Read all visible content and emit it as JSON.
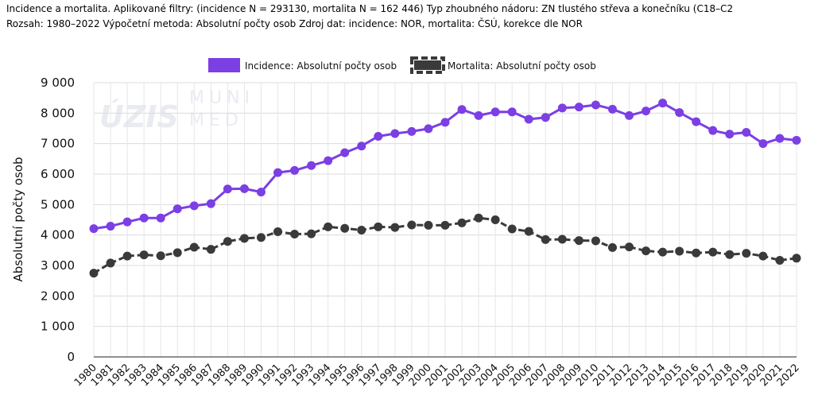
{
  "header": {
    "line1": "Incidence a mortalita. Aplikované filtry: (incidence N = 293130, mortalita N = 162 446) Typ zhoubného nádoru: ZN tlustého střeva a konečníku (C18–C2",
    "line2": "Rozsah: 1980–2022 Výpočetní metoda: Absolutní počty osob Zdroj dat: incidence: NOR, mortalita: ČSÚ, korekce dle NOR"
  },
  "watermark": {
    "left": "ÚZIS",
    "right_top": "MUNI",
    "right_bottom": "MED"
  },
  "chart_data": {
    "type": "line",
    "title": "",
    "xlabel": "",
    "ylabel": "Absolutní počty osob",
    "ylim": [
      0,
      9000
    ],
    "y_ticks": [
      0,
      1000,
      2000,
      3000,
      4000,
      5000,
      6000,
      7000,
      8000,
      9000
    ],
    "y_tick_labels": [
      "0",
      "1 000",
      "2 000",
      "3 000",
      "4 000",
      "5 000",
      "6 000",
      "7 000",
      "8 000",
      "9 000"
    ],
    "grid": true,
    "legend_position": "top-center",
    "categories": [
      "1980",
      "1981",
      "1982",
      "1983",
      "1984",
      "1985",
      "1986",
      "1987",
      "1988",
      "1989",
      "1990",
      "1991",
      "1992",
      "1993",
      "1994",
      "1995",
      "1996",
      "1997",
      "1998",
      "1999",
      "2000",
      "2001",
      "2002",
      "2003",
      "2004",
      "2005",
      "2006",
      "2007",
      "2008",
      "2009",
      "2010",
      "2011",
      "2012",
      "2013",
      "2014",
      "2015",
      "2016",
      "2017",
      "2018",
      "2019",
      "2020",
      "2021",
      "2022"
    ],
    "series": [
      {
        "name": "Incidence: Absolutní počty osob",
        "color": "#7b3fe4",
        "style": "solid",
        "values": [
          4210,
          4290,
          4430,
          4560,
          4560,
          4860,
          4960,
          5030,
          5510,
          5520,
          5410,
          6050,
          6120,
          6280,
          6440,
          6700,
          6920,
          7240,
          7330,
          7400,
          7490,
          7700,
          8120,
          7920,
          8040,
          8040,
          7800,
          7860,
          8170,
          8200,
          8270,
          8130,
          7920,
          8070,
          8330,
          8020,
          7720,
          7430,
          7310,
          7370,
          7000,
          7170,
          7110
        ]
      },
      {
        "name": "Mortalita: Absolutní počty osob",
        "color": "#3a3a3a",
        "style": "dashed",
        "values": [
          2750,
          3080,
          3310,
          3350,
          3320,
          3420,
          3600,
          3530,
          3790,
          3890,
          3920,
          4110,
          4030,
          4040,
          4270,
          4220,
          4160,
          4270,
          4250,
          4330,
          4320,
          4320,
          4400,
          4560,
          4500,
          4200,
          4120,
          3850,
          3860,
          3820,
          3810,
          3590,
          3610,
          3480,
          3440,
          3470,
          3410,
          3440,
          3360,
          3400,
          3310,
          3170,
          3240
        ]
      }
    ]
  }
}
